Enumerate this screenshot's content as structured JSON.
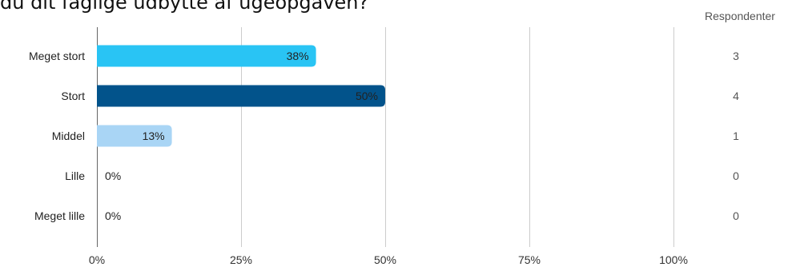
{
  "chart_data": {
    "type": "bar",
    "orientation": "horizontal",
    "title": "du dit faglige udbytte af ugeopgaven?",
    "categories": [
      "Meget stort",
      "Stort",
      "Middel",
      "Lille",
      "Meget lille"
    ],
    "values": [
      38,
      50,
      13,
      0,
      0
    ],
    "value_labels": [
      "38%",
      "50%",
      "13%",
      "0%",
      "0%"
    ],
    "respondents_header": "Respondenter",
    "respondents": [
      "3",
      "4",
      "1",
      "0",
      "0"
    ],
    "xlim": [
      0,
      100
    ],
    "x_ticks": [
      0,
      25,
      50,
      75,
      100
    ],
    "x_tick_labels": [
      "0%",
      "25%",
      "50%",
      "75%",
      "100%"
    ],
    "grid": true,
    "bar_colors": [
      "#29C4F4",
      "#02538B",
      "#A9D5F5",
      "#A9D5F5",
      "#A9D5F5"
    ],
    "label_colors": [
      "#1a1a1a",
      "#1a1a1a",
      "#1a1a1a",
      "#1a1a1a",
      "#1a1a1a"
    ]
  }
}
